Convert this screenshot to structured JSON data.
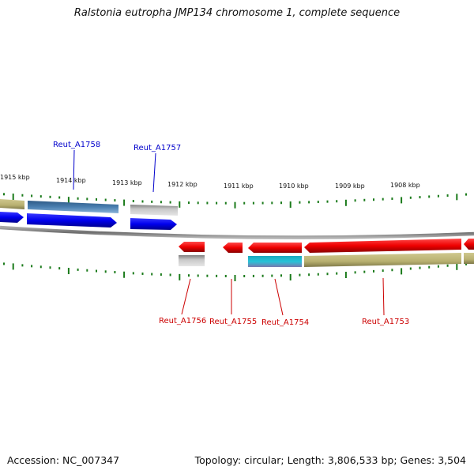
{
  "title": "Ralstonia eutropha JMP134 chromosome 1, complete sequence",
  "footer": {
    "accession": "Accession: NC_007347",
    "topology": "Topology: circular; Length: 3,806,533 bp; Genes: 3,504"
  },
  "scale_labels": [
    "1915 kbp",
    "1914 kbp",
    "1913 kbp",
    "1912 kbp",
    "1911 kbp",
    "1910 kbp",
    "1909 kbp",
    "1908 kbp"
  ],
  "genes_forward": [
    "Reut_A1758",
    "Reut_A1757"
  ],
  "genes_reverse": [
    "Reut_A1756",
    "Reut_A1755",
    "Reut_A1754",
    "Reut_A1753"
  ],
  "colors": {
    "forward_label": "#0000cc",
    "reverse_label": "#cc0000",
    "forward_gene": "#0000ee",
    "reverse_gene": "#ee0000",
    "tick": "#1a7a1a",
    "backbone": "#8a8a8a",
    "olive": "#b8b070",
    "steelblue": "#4a7fb0",
    "gray": "#b0b0b0",
    "cyan": "#20b8cc"
  }
}
